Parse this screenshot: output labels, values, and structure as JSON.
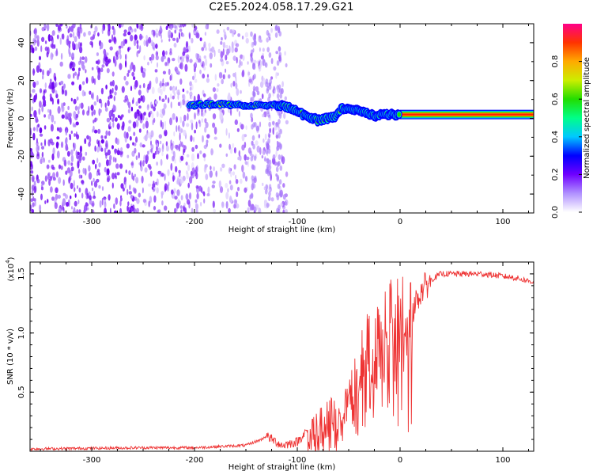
{
  "title": "C2E5.2024.058.17.29.G21",
  "chart_data": [
    {
      "type": "heatmap",
      "xlabel": "Height of straight line (km)",
      "ylabel": "Frequency (Hz)",
      "xlim": [
        -360,
        130
      ],
      "ylim": [
        -50,
        50
      ],
      "xticks": [
        -300,
        -200,
        -100,
        0,
        100
      ],
      "yticks": [
        -40,
        -20,
        0,
        20,
        40
      ],
      "colorbar": {
        "label": "Normalized spectral amplitude",
        "range": [
          0.0,
          1.0
        ],
        "ticks": [
          "0.0",
          "0.2",
          "0.4",
          "0.6",
          "0.8"
        ],
        "colors": [
          "#ffffff",
          "#b090ff",
          "#6f00ff",
          "#0000ff",
          "#00c8ff",
          "#00ff88",
          "#22dd00",
          "#ccee00",
          "#ffaa00",
          "#ff3300",
          "#ff0088"
        ]
      },
      "noise_region": [
        -360,
        -110
      ],
      "signal_track": [
        {
          "x": -205,
          "y": 7
        },
        {
          "x": -180,
          "y": 7.5
        },
        {
          "x": -160,
          "y": 7
        },
        {
          "x": -140,
          "y": 7
        },
        {
          "x": -120,
          "y": 7
        },
        {
          "x": -110,
          "y": 6
        },
        {
          "x": -100,
          "y": 3.5
        },
        {
          "x": -90,
          "y": 1
        },
        {
          "x": -80,
          "y": -1
        },
        {
          "x": -70,
          "y": 0
        },
        {
          "x": -62,
          "y": 1
        },
        {
          "x": -58,
          "y": 5
        },
        {
          "x": -45,
          "y": 5
        },
        {
          "x": -35,
          "y": 3
        },
        {
          "x": -25,
          "y": 1.5
        },
        {
          "x": -10,
          "y": 2
        },
        {
          "x": 0,
          "y": 2
        },
        {
          "x": 130,
          "y": 2
        }
      ]
    },
    {
      "type": "line",
      "xlabel": "Height of straight line (km)",
      "ylabel": "SNR (10 * v/v)",
      "multiplier": "(x10",
      "multiplier_exp": "4",
      "xlim": [
        -360,
        130
      ],
      "ylim": [
        0,
        1.6
      ],
      "xticks": [
        -300,
        -200,
        -100,
        0,
        100
      ],
      "yticks": [
        "0.5",
        "1.0",
        "1.5"
      ],
      "ytick_values": [
        0.5,
        1.0,
        1.5
      ],
      "color": "#ee3333",
      "series": [
        {
          "x": [
            -360,
            -250,
            -200,
            -150,
            -135,
            -130,
            -115,
            -100,
            -90,
            -80,
            -70,
            -60,
            -50,
            -40,
            -30,
            -20,
            -10,
            0,
            10,
            20,
            30,
            40,
            50,
            60,
            70,
            80,
            90,
            100,
            110,
            120,
            130
          ],
          "values": [
            0.02,
            0.03,
            0.03,
            0.05,
            0.1,
            0.13,
            0.05,
            0.08,
            0.18,
            0.2,
            0.25,
            0.35,
            0.5,
            0.75,
            0.9,
            1.05,
            1.15,
            1.1,
            1.15,
            1.35,
            1.45,
            1.5,
            1.5,
            1.5,
            1.5,
            1.5,
            1.49,
            1.48,
            1.47,
            1.45,
            1.43
          ]
        }
      ]
    }
  ]
}
